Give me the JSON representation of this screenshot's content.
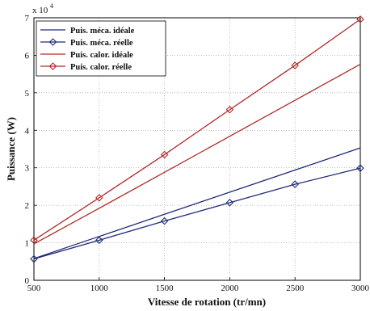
{
  "chart_data": {
    "type": "line",
    "title": "",
    "xlabel": "Vitesse de rotation (tr/mn)",
    "ylabel": "Puissance (W)",
    "y_scale_label": "x 10",
    "y_scale_exponent": "4",
    "xlim": [
      500,
      3000
    ],
    "ylim": [
      0,
      7
    ],
    "x_ticks": [
      500,
      1000,
      1500,
      2000,
      2500,
      3000
    ],
    "y_ticks": [
      0,
      1,
      2,
      3,
      4,
      5,
      6,
      7
    ],
    "grid": true,
    "legend_position": "top-left",
    "x": [
      500,
      1000,
      1500,
      2000,
      2500,
      3000
    ],
    "series": [
      {
        "name": "Puis. méca. idéale",
        "color": "#1f2a7a",
        "marker": "none",
        "values": [
          0.58,
          1.17,
          1.76,
          2.35,
          2.94,
          3.53
        ]
      },
      {
        "name": "Puis. méca. réelle",
        "color": "#1f2a7a",
        "marker": "diamond",
        "values": [
          0.57,
          1.07,
          1.58,
          2.07,
          2.56,
          2.99
        ]
      },
      {
        "name": "Puis. calor. idéale",
        "color": "#b02a2a",
        "marker": "none",
        "values": [
          0.97,
          1.92,
          2.88,
          3.84,
          4.8,
          5.76
        ]
      },
      {
        "name": "Puis. calor. réelle",
        "color": "#b02a2a",
        "marker": "diamond",
        "values": [
          1.07,
          2.2,
          3.35,
          4.55,
          5.73,
          6.96
        ]
      }
    ]
  }
}
